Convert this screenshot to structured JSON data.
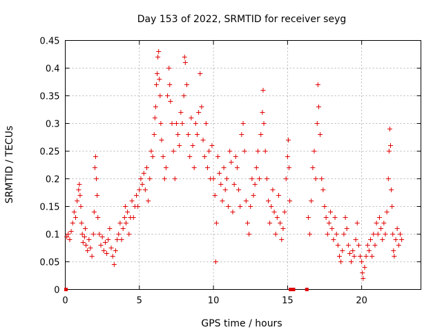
{
  "chart_data": {
    "type": "scatter",
    "title": "Day 153 of 2022, SRMTID for receiver seyg",
    "xlabel": "GPS time / hours",
    "ylabel": "SRMTID / TECUs",
    "xlim": [
      0,
      24
    ],
    "ylim": [
      0,
      0.45
    ],
    "xticks": [
      0,
      5,
      10,
      15,
      20
    ],
    "xtick_labels": [
      "0",
      "5",
      "10",
      "15",
      "20"
    ],
    "yticks": [
      0,
      0.05,
      0.1,
      0.15,
      0.2,
      0.25,
      0.3,
      0.35,
      0.4,
      0.45
    ],
    "ytick_labels": [
      "0",
      "0.05",
      "0.1",
      "0.15",
      "0.2",
      "0.25",
      "0.3",
      "0.35",
      "0.4",
      "0.45"
    ],
    "grid": true,
    "marker": "plus",
    "color": "#e00000",
    "series": [
      {
        "name": "SRMTID",
        "points": [
          [
            0.05,
            0.0
          ],
          [
            0.1,
            0.095
          ],
          [
            0.2,
            0.1
          ],
          [
            0.3,
            0.09
          ],
          [
            0.4,
            0.105
          ],
          [
            0.5,
            0.12
          ],
          [
            0.6,
            0.14
          ],
          [
            0.7,
            0.13
          ],
          [
            0.8,
            0.16
          ],
          [
            0.9,
            0.18
          ],
          [
            0.95,
            0.19
          ],
          [
            1.0,
            0.17
          ],
          [
            1.05,
            0.15
          ],
          [
            1.1,
            0.12
          ],
          [
            1.15,
            0.1
          ],
          [
            1.2,
            0.085
          ],
          [
            1.3,
            0.095
          ],
          [
            1.35,
            0.11
          ],
          [
            1.4,
            0.08
          ],
          [
            1.5,
            0.07
          ],
          [
            1.6,
            0.09
          ],
          [
            1.7,
            0.075
          ],
          [
            1.8,
            0.06
          ],
          [
            1.9,
            0.1
          ],
          [
            1.95,
            0.14
          ],
          [
            2.0,
            0.22
          ],
          [
            2.05,
            0.24
          ],
          [
            2.1,
            0.2
          ],
          [
            2.15,
            0.17
          ],
          [
            2.2,
            0.13
          ],
          [
            2.3,
            0.1
          ],
          [
            2.4,
            0.08
          ],
          [
            2.5,
            0.095
          ],
          [
            2.6,
            0.07
          ],
          [
            2.7,
            0.085
          ],
          [
            2.8,
            0.065
          ],
          [
            2.9,
            0.09
          ],
          [
            3.0,
            0.11
          ],
          [
            3.1,
            0.075
          ],
          [
            3.2,
            0.06
          ],
          [
            3.3,
            0.045
          ],
          [
            3.4,
            0.07
          ],
          [
            3.5,
            0.09
          ],
          [
            3.6,
            0.1
          ],
          [
            3.7,
            0.12
          ],
          [
            3.8,
            0.09
          ],
          [
            3.9,
            0.11
          ],
          [
            4.0,
            0.13
          ],
          [
            4.05,
            0.15
          ],
          [
            4.1,
            0.12
          ],
          [
            4.2,
            0.14
          ],
          [
            4.3,
            0.1
          ],
          [
            4.4,
            0.13
          ],
          [
            4.5,
            0.16
          ],
          [
            4.6,
            0.13
          ],
          [
            4.7,
            0.15
          ],
          [
            4.8,
            0.17
          ],
          [
            4.9,
            0.15
          ],
          [
            5.0,
            0.18
          ],
          [
            5.1,
            0.2
          ],
          [
            5.2,
            0.19
          ],
          [
            5.3,
            0.21
          ],
          [
            5.4,
            0.18
          ],
          [
            5.5,
            0.22
          ],
          [
            5.6,
            0.16
          ],
          [
            5.7,
            0.2
          ],
          [
            5.8,
            0.25
          ],
          [
            5.9,
            0.24
          ],
          [
            6.0,
            0.28
          ],
          [
            6.05,
            0.31
          ],
          [
            6.1,
            0.33
          ],
          [
            6.15,
            0.37
          ],
          [
            6.2,
            0.39
          ],
          [
            6.25,
            0.42
          ],
          [
            6.3,
            0.43
          ],
          [
            6.35,
            0.38
          ],
          [
            6.4,
            0.35
          ],
          [
            6.45,
            0.3
          ],
          [
            6.5,
            0.27
          ],
          [
            6.6,
            0.24
          ],
          [
            6.7,
            0.2
          ],
          [
            6.8,
            0.22
          ],
          [
            6.9,
            0.35
          ],
          [
            7.0,
            0.4
          ],
          [
            7.05,
            0.37
          ],
          [
            7.1,
            0.34
          ],
          [
            7.2,
            0.3
          ],
          [
            7.3,
            0.25
          ],
          [
            7.4,
            0.2
          ],
          [
            7.5,
            0.3
          ],
          [
            7.6,
            0.28
          ],
          [
            7.7,
            0.26
          ],
          [
            7.8,
            0.32
          ],
          [
            7.9,
            0.3
          ],
          [
            8.0,
            0.35
          ],
          [
            8.05,
            0.42
          ],
          [
            8.1,
            0.41
          ],
          [
            8.2,
            0.37
          ],
          [
            8.3,
            0.28
          ],
          [
            8.4,
            0.24
          ],
          [
            8.5,
            0.31
          ],
          [
            8.6,
            0.26
          ],
          [
            8.7,
            0.22
          ],
          [
            8.8,
            0.3
          ],
          [
            8.9,
            0.28
          ],
          [
            9.0,
            0.32
          ],
          [
            9.1,
            0.39
          ],
          [
            9.2,
            0.33
          ],
          [
            9.3,
            0.27
          ],
          [
            9.4,
            0.24
          ],
          [
            9.5,
            0.3
          ],
          [
            9.6,
            0.22
          ],
          [
            9.7,
            0.25
          ],
          [
            9.8,
            0.2
          ],
          [
            9.9,
            0.26
          ],
          [
            10.0,
            0.2
          ],
          [
            10.1,
            0.17
          ],
          [
            10.15,
            0.05
          ],
          [
            10.2,
            0.12
          ],
          [
            10.3,
            0.24
          ],
          [
            10.4,
            0.21
          ],
          [
            10.5,
            0.19
          ],
          [
            10.6,
            0.16
          ],
          [
            10.7,
            0.22
          ],
          [
            10.8,
            0.18
          ],
          [
            10.9,
            0.2
          ],
          [
            11.0,
            0.15
          ],
          [
            11.1,
            0.25
          ],
          [
            11.2,
            0.23
          ],
          [
            11.3,
            0.14
          ],
          [
            11.4,
            0.19
          ],
          [
            11.5,
            0.24
          ],
          [
            11.6,
            0.22
          ],
          [
            11.7,
            0.18
          ],
          [
            11.8,
            0.15
          ],
          [
            11.9,
            0.28
          ],
          [
            12.0,
            0.3
          ],
          [
            12.1,
            0.25
          ],
          [
            12.2,
            0.16
          ],
          [
            12.3,
            0.12
          ],
          [
            12.4,
            0.1
          ],
          [
            12.5,
            0.15
          ],
          [
            12.6,
            0.2
          ],
          [
            12.7,
            0.17
          ],
          [
            12.8,
            0.19
          ],
          [
            12.9,
            0.22
          ],
          [
            13.0,
            0.25
          ],
          [
            13.1,
            0.2
          ],
          [
            13.2,
            0.28
          ],
          [
            13.3,
            0.32
          ],
          [
            13.35,
            0.36
          ],
          [
            13.4,
            0.3
          ],
          [
            13.5,
            0.25
          ],
          [
            13.6,
            0.2
          ],
          [
            13.7,
            0.16
          ],
          [
            13.8,
            0.12
          ],
          [
            13.9,
            0.15
          ],
          [
            14.0,
            0.18
          ],
          [
            14.1,
            0.14
          ],
          [
            14.2,
            0.1
          ],
          [
            14.3,
            0.13
          ],
          [
            14.4,
            0.17
          ],
          [
            14.5,
            0.12
          ],
          [
            14.6,
            0.09
          ],
          [
            14.7,
            0.11
          ],
          [
            14.8,
            0.14
          ],
          [
            14.9,
            0.2
          ],
          [
            15.0,
            0.24
          ],
          [
            15.05,
            0.27
          ],
          [
            15.1,
            0.22
          ],
          [
            15.15,
            0.16
          ],
          [
            15.2,
            0.0
          ],
          [
            15.3,
            0.0
          ],
          [
            15.4,
            0.0
          ],
          [
            16.3,
            0.0
          ],
          [
            16.4,
            0.13
          ],
          [
            16.5,
            0.1
          ],
          [
            16.6,
            0.16
          ],
          [
            16.7,
            0.22
          ],
          [
            16.8,
            0.25
          ],
          [
            16.9,
            0.2
          ],
          [
            17.0,
            0.3
          ],
          [
            17.05,
            0.37
          ],
          [
            17.1,
            0.33
          ],
          [
            17.2,
            0.28
          ],
          [
            17.3,
            0.2
          ],
          [
            17.4,
            0.18
          ],
          [
            17.5,
            0.15
          ],
          [
            17.6,
            0.13
          ],
          [
            17.7,
            0.1
          ],
          [
            17.8,
            0.12
          ],
          [
            17.9,
            0.14
          ],
          [
            18.0,
            0.11
          ],
          [
            18.1,
            0.09
          ],
          [
            18.2,
            0.13
          ],
          [
            18.3,
            0.1
          ],
          [
            18.4,
            0.08
          ],
          [
            18.5,
            0.06
          ],
          [
            18.6,
            0.05
          ],
          [
            18.7,
            0.07
          ],
          [
            18.8,
            0.1
          ],
          [
            18.9,
            0.13
          ],
          [
            19.0,
            0.11
          ],
          [
            19.1,
            0.08
          ],
          [
            19.2,
            0.065
          ],
          [
            19.3,
            0.05
          ],
          [
            19.4,
            0.07
          ],
          [
            19.5,
            0.06
          ],
          [
            19.6,
            0.09
          ],
          [
            19.7,
            0.12
          ],
          [
            19.8,
            0.08
          ],
          [
            19.9,
            0.06
          ],
          [
            20.0,
            0.05
          ],
          [
            20.05,
            0.03
          ],
          [
            20.1,
            0.02
          ],
          [
            20.2,
            0.04
          ],
          [
            20.3,
            0.06
          ],
          [
            20.4,
            0.08
          ],
          [
            20.5,
            0.07
          ],
          [
            20.6,
            0.09
          ],
          [
            20.7,
            0.06
          ],
          [
            20.8,
            0.1
          ],
          [
            20.9,
            0.08
          ],
          [
            21.0,
            0.12
          ],
          [
            21.1,
            0.1
          ],
          [
            21.2,
            0.13
          ],
          [
            21.3,
            0.11
          ],
          [
            21.4,
            0.09
          ],
          [
            21.5,
            0.12
          ],
          [
            21.6,
            0.1
          ],
          [
            21.7,
            0.14
          ],
          [
            21.8,
            0.2
          ],
          [
            21.85,
            0.25
          ],
          [
            21.9,
            0.29
          ],
          [
            21.95,
            0.26
          ],
          [
            22.0,
            0.18
          ],
          [
            22.05,
            0.15
          ],
          [
            22.1,
            0.1
          ],
          [
            22.15,
            0.07
          ],
          [
            22.2,
            0.06
          ],
          [
            22.3,
            0.09
          ],
          [
            22.4,
            0.11
          ],
          [
            22.5,
            0.08
          ],
          [
            22.6,
            0.1
          ],
          [
            22.7,
            0.09
          ]
        ]
      }
    ]
  }
}
